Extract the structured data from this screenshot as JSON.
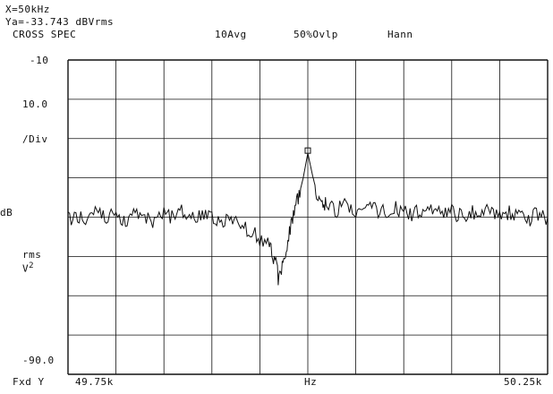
{
  "header": {
    "marker_x": "X=50kHz",
    "marker_y": "Ya=-33.743 dBVrms",
    "measurement": "CROSS SPEC",
    "averaging": "10Avg",
    "overlap": "50%Ovlp",
    "window": "Hann"
  },
  "left_axis": {
    "top_value": "-10",
    "scale_value": "10.0",
    "scale_unit": "/Div",
    "unit_db": "dB",
    "unit_rms": "rms",
    "unit_v": "V",
    "unit_exp": "2",
    "bottom_value": "-90.0",
    "scale_mode": "Fxd Y"
  },
  "x_axis": {
    "start_label": "49.75k",
    "center_label": "Hz",
    "stop_label": "50.25k"
  },
  "colors": {
    "trace": "#111111",
    "grid": "#111111",
    "background": "#ffffff"
  },
  "chart_data": {
    "type": "line",
    "title": "CROSS SPEC",
    "xlabel": "Hz",
    "ylabel": "dB rms V2",
    "xlim": [
      49750,
      50250
    ],
    "ylim": [
      -90,
      -10
    ],
    "grid": true,
    "x_ticks": [
      "49.75k",
      "50.25k"
    ],
    "y_ticks": [
      "-10",
      "-90.0"
    ],
    "marker": {
      "x": 50000,
      "y": -33.743
    },
    "series": [
      {
        "x": [
          49750,
          49760,
          49770,
          49780,
          49790,
          49800,
          49810,
          49820,
          49830,
          49840,
          49850,
          49860,
          49870,
          49880,
          49890,
          49900,
          49910,
          49920,
          49930,
          49940,
          49950,
          49960,
          49965,
          49970,
          49975,
          49980,
          49985,
          49990,
          49995,
          50000,
          50005,
          50010,
          50015,
          50020,
          50030,
          50040,
          50050,
          50060,
          50070,
          50080,
          50090,
          50100,
          50110,
          50120,
          50130,
          50140,
          50150,
          50160,
          50170,
          50180,
          50190,
          50200,
          50210,
          50220,
          50230,
          50240,
          50250
        ],
        "y": [
          -50.5,
          -49.2,
          -51.0,
          -48.5,
          -50.3,
          -49.0,
          -50.8,
          -48.2,
          -49.6,
          -50.9,
          -48.8,
          -49.9,
          -48.4,
          -50.6,
          -49.3,
          -50.2,
          -51.8,
          -50.4,
          -52.1,
          -53.2,
          -55.4,
          -57.6,
          -60.3,
          -66.3,
          -61.5,
          -54.2,
          -49.5,
          -45.0,
          -40.3,
          -33.7,
          -39.5,
          -44.2,
          -45.6,
          -46.9,
          -48.0,
          -47.2,
          -49.1,
          -48.3,
          -47.6,
          -48.9,
          -47.8,
          -48.6,
          -49.3,
          -47.9,
          -48.5,
          -49.4,
          -48.1,
          -50.0,
          -48.7,
          -49.2,
          -48.4,
          -49.8,
          -48.9,
          -49.5,
          -50.6,
          -49.1,
          -50.2
        ]
      }
    ]
  }
}
